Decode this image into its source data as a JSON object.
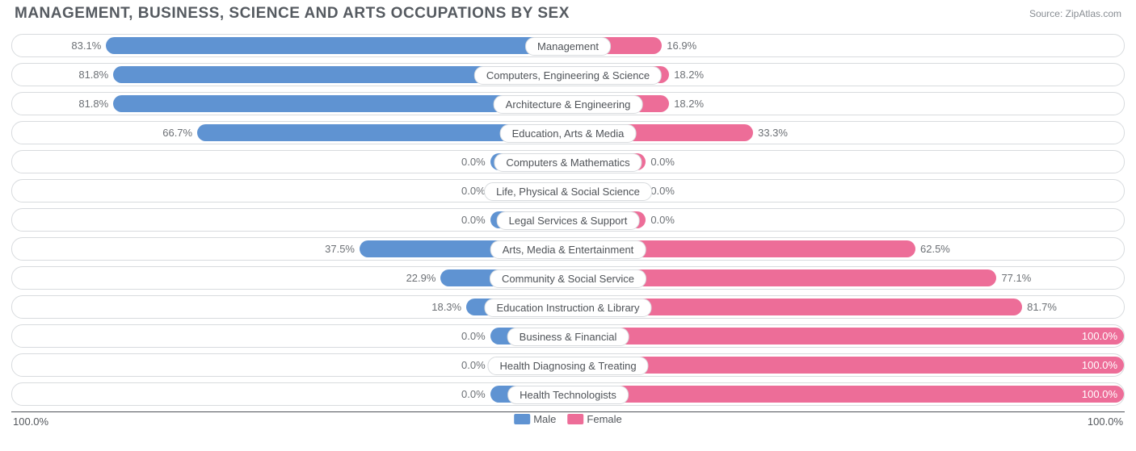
{
  "title": "MANAGEMENT, BUSINESS, SCIENCE AND ARTS OCCUPATIONS BY SEX",
  "source": "Source: ZipAtlas.com",
  "colors": {
    "male": "#5f93d2",
    "female": "#ed6d98",
    "male_row_tint": "#bcd0eb",
    "female_row_tint": "#f6c1d3",
    "row_border": "#d8dbde",
    "text": "#6c7075"
  },
  "axis": {
    "left": "100.0%",
    "right": "100.0%"
  },
  "legend": {
    "male": "Male",
    "female": "Female"
  },
  "min_bar_pct": 14,
  "rows": [
    {
      "label": "Management",
      "male": 83.1,
      "female": 16.9
    },
    {
      "label": "Computers, Engineering & Science",
      "male": 81.8,
      "female": 18.2
    },
    {
      "label": "Architecture & Engineering",
      "male": 81.8,
      "female": 18.2
    },
    {
      "label": "Education, Arts & Media",
      "male": 66.7,
      "female": 33.3
    },
    {
      "label": "Computers & Mathematics",
      "male": 0.0,
      "female": 0.0
    },
    {
      "label": "Life, Physical & Social Science",
      "male": 0.0,
      "female": 0.0
    },
    {
      "label": "Legal Services & Support",
      "male": 0.0,
      "female": 0.0
    },
    {
      "label": "Arts, Media & Entertainment",
      "male": 37.5,
      "female": 62.5
    },
    {
      "label": "Community & Social Service",
      "male": 22.9,
      "female": 77.1
    },
    {
      "label": "Education Instruction & Library",
      "male": 18.3,
      "female": 81.7
    },
    {
      "label": "Business & Financial",
      "male": 0.0,
      "female": 100.0
    },
    {
      "label": "Health Diagnosing & Treating",
      "male": 0.0,
      "female": 100.0
    },
    {
      "label": "Health Technologists",
      "male": 0.0,
      "female": 100.0
    }
  ]
}
